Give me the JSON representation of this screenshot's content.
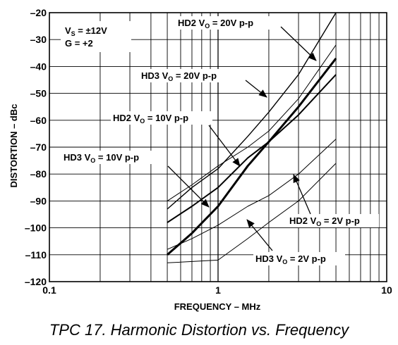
{
  "caption": "TPC 17.  Harmonic Distortion vs. Frequency",
  "chart_data": {
    "type": "line",
    "title": "TPC 17.  Harmonic Distortion vs. Frequency",
    "xlabel": "FREQUENCY – MHz",
    "ylabel": "DISTORTION – dBc",
    "xscale": "log",
    "xlim": [
      0.1,
      10
    ],
    "ylim": [
      -120,
      -20
    ],
    "x_ticks": [
      "0.1",
      "1",
      "10"
    ],
    "y_ticks": [
      "–20",
      "–30",
      "–40",
      "–50",
      "–60",
      "–70",
      "–80",
      "–90",
      "–100",
      "–110",
      "–120"
    ],
    "grid": true,
    "conditions": {
      "vs_label": "V",
      "vs_sub": "S",
      "vs_value": " = ±12V",
      "gain": "G = +2"
    },
    "series": [
      {
        "name": "HD2 VO = 20V p-p",
        "label_pre": "HD2 V",
        "label_sub": "O",
        "label_post": " = 20V p-p",
        "weight": "thick",
        "x": [
          0.5,
          0.7,
          1,
          1.5,
          2,
          3,
          5
        ],
        "y": [
          -93,
          -85,
          -78,
          -66,
          -57,
          -43,
          -20
        ]
      },
      {
        "name": "HD3 VO = 20V p-p",
        "label_pre": "HD3 V",
        "label_sub": "O",
        "label_post": " = 20V p-p",
        "weight": "thin",
        "x": [
          0.5,
          0.7,
          1,
          1.5,
          2,
          3,
          5
        ],
        "y": [
          -90,
          -84,
          -77,
          -70,
          -64,
          -52,
          -32
        ]
      },
      {
        "name": "HD2 VO = 10V p-p",
        "label_pre": "HD2 V",
        "label_sub": "O",
        "label_post": " = 10V p-p",
        "weight": "bold",
        "x": [
          0.5,
          0.7,
          1,
          1.5,
          2,
          3,
          5
        ],
        "y": [
          -110,
          -102,
          -92,
          -77,
          -68,
          -55,
          -37
        ]
      },
      {
        "name": "HD3 VO = 10V p-p",
        "label_pre": "HD3 V",
        "label_sub": "O",
        "label_post": " = 10V p-p",
        "weight": "medium",
        "x": [
          0.5,
          0.7,
          1,
          1.5,
          2,
          3,
          5
        ],
        "y": [
          -98,
          -92,
          -85,
          -74,
          -68,
          -58,
          -43
        ]
      },
      {
        "name": "HD2 VO = 2V p-p",
        "label_pre": "HD2 V",
        "label_sub": "O",
        "label_post": " = 2V p-p",
        "weight": "thin",
        "x": [
          0.5,
          0.7,
          1,
          1.5,
          2,
          3,
          5
        ],
        "y": [
          -108,
          -104,
          -99,
          -92,
          -88,
          -80,
          -67
        ]
      },
      {
        "name": "HD3 VO = 2V p-p",
        "label_pre": "HD3 V",
        "label_sub": "O",
        "label_post": " = 2V p-p",
        "weight": "thin",
        "x": [
          0.5,
          1,
          1.5,
          2,
          3,
          5
        ],
        "y": [
          -113,
          -112,
          -104,
          -98,
          -90,
          -76
        ]
      }
    ]
  }
}
